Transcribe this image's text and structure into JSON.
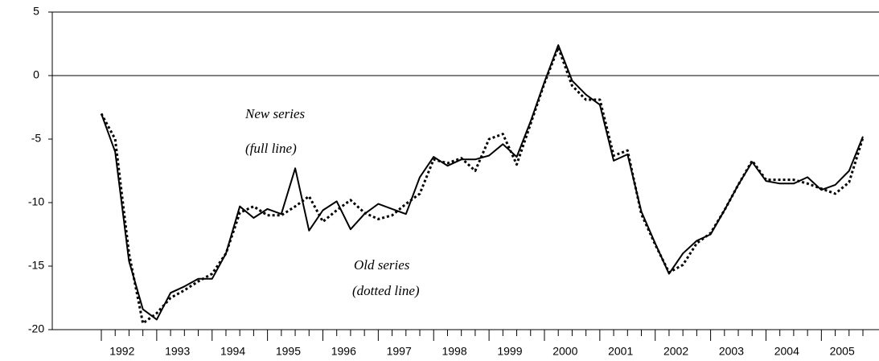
{
  "chart_data": {
    "type": "line",
    "annotations": [
      "New series",
      "(full line)",
      "Old series",
      "(dotted line)"
    ],
    "categories": [
      null,
      "1992",
      null,
      null,
      null,
      "1993",
      null,
      null,
      null,
      "1994",
      null,
      null,
      null,
      "1995",
      null,
      null,
      null,
      "1996",
      null,
      null,
      null,
      "1997",
      null,
      null,
      null,
      "1998",
      null,
      null,
      null,
      "1999",
      null,
      null,
      null,
      "2000",
      null,
      null,
      null,
      "2001",
      null,
      null,
      null,
      "2002",
      null,
      null,
      null,
      "2003",
      null,
      null,
      null,
      "2004",
      null,
      null,
      null,
      "2005",
      null,
      null
    ],
    "series": [
      {
        "color": "#000000",
        "style": "solid",
        "values": [
          -3.0,
          -6.0,
          -14.6,
          -18.4,
          -19.2,
          -17.1,
          -16.6,
          -16.0,
          -16.0,
          -14.0,
          -10.3,
          -11.2,
          -10.5,
          -10.9,
          -7.3,
          -12.2,
          -10.6,
          -9.9,
          -12.1,
          -10.9,
          -10.1,
          -10.5,
          -10.9,
          -8.0,
          -6.4,
          -7.1,
          -6.6,
          -6.6,
          -6.3,
          -5.4,
          -6.4,
          -3.6,
          -0.5,
          2.4,
          -0.4,
          -1.5,
          -2.3,
          -6.7,
          -6.2,
          -10.7,
          -13.2,
          -15.6,
          -14.0,
          -13.0,
          -12.5,
          -10.6,
          -8.6,
          -6.8,
          -8.3,
          -8.5,
          -8.5,
          -8.0,
          -9.0,
          -8.6,
          -7.5,
          -4.8
        ]
      },
      {
        "color": "#000000",
        "style": "dotted",
        "values": [
          -3.0,
          -5.0,
          -14.0,
          -19.5,
          -18.7,
          -17.5,
          -16.9,
          -16.2,
          -15.6,
          -14.0,
          -10.8,
          -10.3,
          -11.0,
          -11.0,
          -10.3,
          -9.5,
          -11.5,
          -10.6,
          -9.8,
          -10.8,
          -11.3,
          -11.0,
          -10.1,
          -9.3,
          -6.6,
          -6.9,
          -6.5,
          -7.5,
          -5.0,
          -4.6,
          -7.0,
          -3.8,
          -0.6,
          2.2,
          -0.8,
          -1.9,
          -1.9,
          -6.3,
          -5.9,
          -10.9,
          -13.3,
          -15.5,
          -14.9,
          -13.2,
          -12.4,
          -10.6,
          -8.6,
          -6.7,
          -8.2,
          -8.2,
          -8.2,
          -8.5,
          -8.9,
          -9.3,
          -8.4,
          -4.9
        ]
      }
    ],
    "ylim": [
      -20,
      5
    ],
    "yticks": [
      5,
      0,
      -5,
      -10,
      -15,
      -20
    ],
    "zero_line": true
  }
}
